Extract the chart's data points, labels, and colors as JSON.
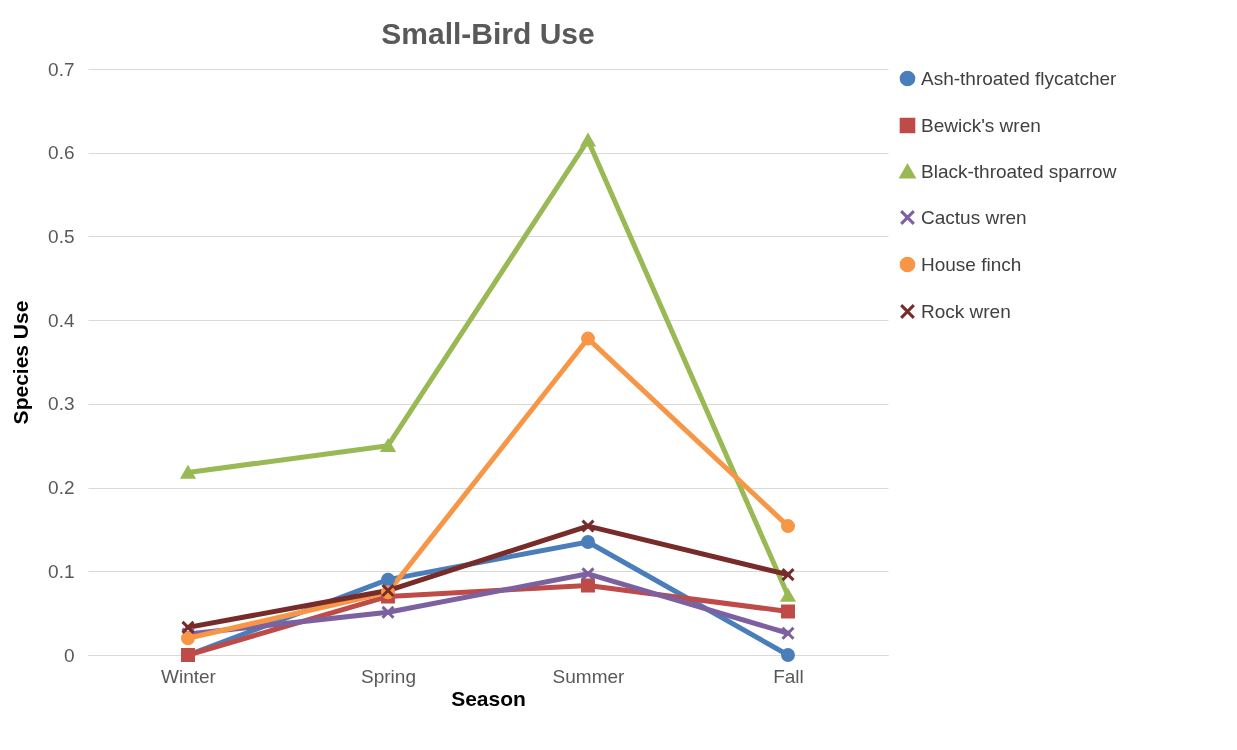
{
  "chart_data": {
    "type": "line",
    "title": "Small-Bird Use",
    "xlabel": "Season",
    "ylabel": "Species Use",
    "categories": [
      "Winter",
      "Spring",
      "Summer",
      "Fall"
    ],
    "ylim": [
      0,
      0.7
    ],
    "yticks": [
      0,
      0.1,
      0.2,
      0.3,
      0.4,
      0.5,
      0.6,
      0.7
    ],
    "grid": "y",
    "legend": "right",
    "series": [
      {
        "name": "Ash-throated flycatcher",
        "color": "#4a7ebb",
        "marker": "circle",
        "values": [
          0,
          0.09,
          0.135,
          0
        ]
      },
      {
        "name": "Bewick's wren",
        "color": "#be4b48",
        "marker": "square",
        "values": [
          0,
          0.07,
          0.083,
          0.052
        ]
      },
      {
        "name": "Black-throated sparrow",
        "color": "#98b954",
        "marker": "triangle",
        "values": [
          0.218,
          0.25,
          0.615,
          0.071
        ]
      },
      {
        "name": "Cactus wren",
        "color": "#7d60a0",
        "marker": "cross",
        "values": [
          0.025,
          0.051,
          0.097,
          0.026
        ]
      },
      {
        "name": "House finch",
        "color": "#f79646",
        "marker": "circle",
        "values": [
          0.02,
          0.075,
          0.378,
          0.154
        ]
      },
      {
        "name": "Rock wren",
        "color": "#772c2a",
        "marker": "cross",
        "values": [
          0.033,
          0.077,
          0.154,
          0.096
        ]
      }
    ]
  }
}
